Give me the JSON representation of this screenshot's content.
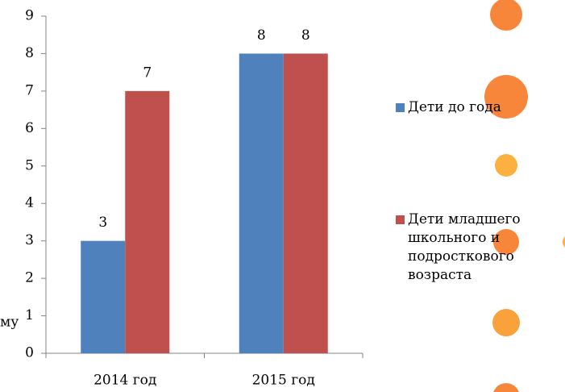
{
  "chart_data": {
    "type": "bar",
    "categories": [
      "2014 год",
      "2015 год"
    ],
    "series": [
      {
        "name": "Дети до года",
        "color": "#4f81bd",
        "values": [
          3,
          8
        ]
      },
      {
        "name": "Дети младшего школьного и подросткового возраста",
        "color": "#c0504d",
        "values": [
          7,
          8
        ]
      }
    ],
    "ylim": [
      0,
      9
    ],
    "yticks": [
      0,
      1,
      2,
      3,
      4,
      5,
      6,
      7,
      8,
      9
    ],
    "grid": false,
    "legend": "right",
    "annotation": "му"
  }
}
